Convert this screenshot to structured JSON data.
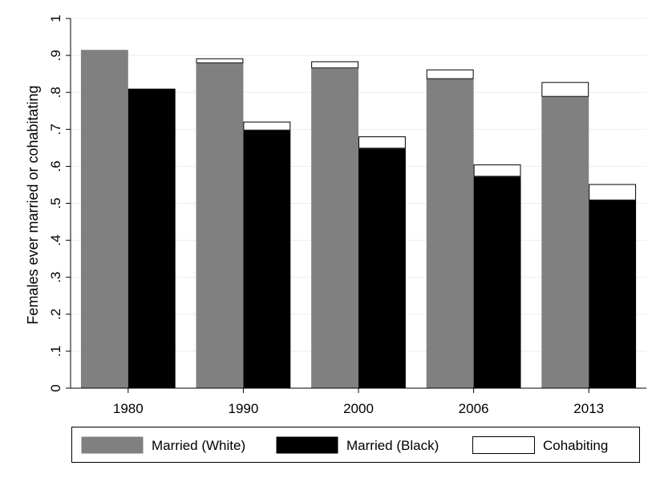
{
  "chart_data": {
    "type": "bar",
    "stacked_segments": true,
    "title": "",
    "xlabel": "",
    "ylabel": "Females ever married or cohabitating",
    "categories": [
      "1980",
      "1990",
      "2000",
      "2006",
      "2013"
    ],
    "ylim": [
      0,
      1
    ],
    "yticks": [
      "0",
      ".1",
      ".2",
      ".3",
      ".4",
      ".5",
      ".6",
      ".7",
      ".8",
      ".9",
      "1"
    ],
    "grid": true,
    "legend_position": "bottom",
    "series": [
      {
        "name": "Married (White)",
        "group": "white",
        "stack_order": 0,
        "color": "#808080",
        "values": [
          0.915,
          0.879,
          0.865,
          0.836,
          0.788
        ]
      },
      {
        "name": "Married (Black)",
        "group": "black",
        "stack_order": 0,
        "color": "#000000",
        "values": [
          0.81,
          0.697,
          0.648,
          0.572,
          0.508
        ]
      },
      {
        "name": "Cohabiting",
        "group": "both",
        "stack_order": 1,
        "color": "#ffffff",
        "values_white": [
          0.0,
          0.013,
          0.019,
          0.026,
          0.04
        ],
        "values_black": [
          0.0,
          0.024,
          0.033,
          0.033,
          0.044
        ]
      }
    ]
  }
}
